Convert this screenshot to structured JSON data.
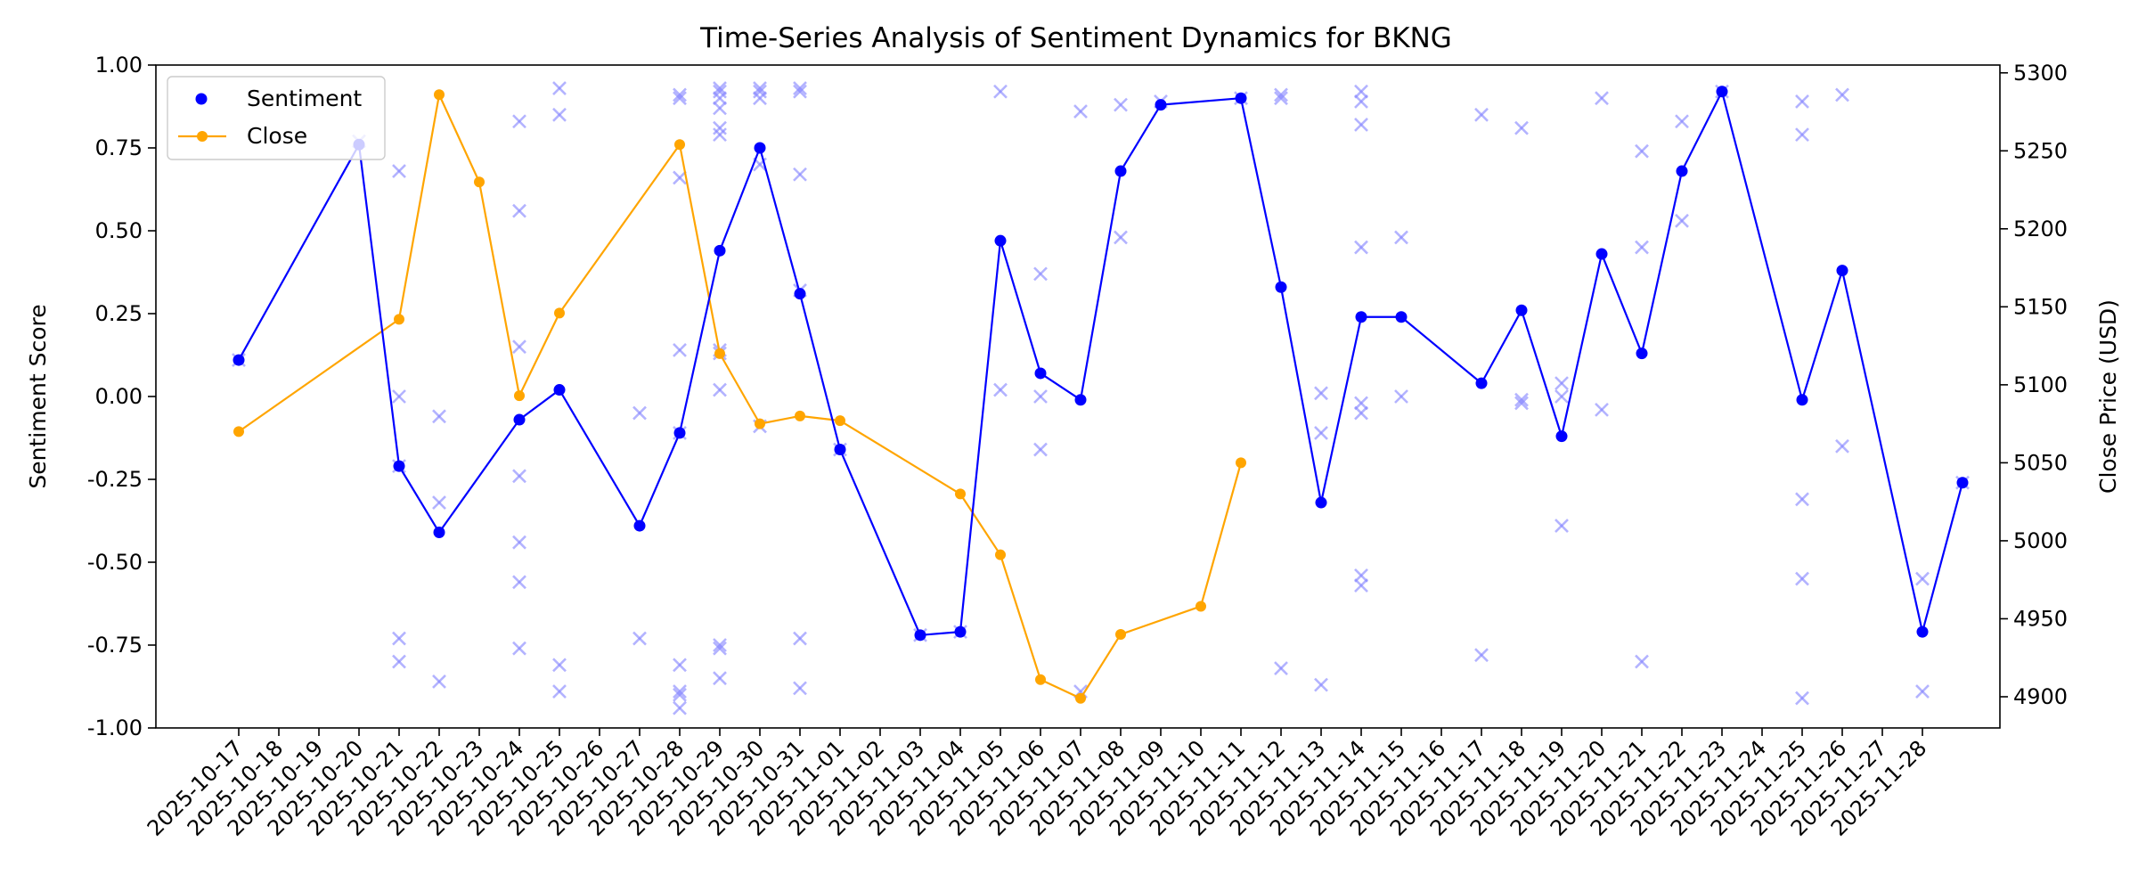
{
  "chart_data": {
    "type": "line",
    "title": "Time-Series Analysis of Sentiment Dynamics for BKNG",
    "ylabel": "Sentiment Score",
    "y2label": "Close Price (USD)",
    "xlabel": "",
    "ylim": [
      -1.0,
      1.0
    ],
    "y2lim": [
      4880,
      5305
    ],
    "yticks": [
      "-1.00",
      "-0.75",
      "-0.50",
      "-0.25",
      "0.00",
      "0.25",
      "0.50",
      "0.75",
      "1.00"
    ],
    "y2ticks": [
      "4900",
      "4950",
      "5000",
      "5050",
      "5100",
      "5150",
      "5200",
      "5250",
      "5300"
    ],
    "grid": false,
    "legend_position": "top-left",
    "categories": [
      "2025-10-17",
      "2025-10-18",
      "2025-10-19",
      "2025-10-20",
      "2025-10-21",
      "2025-10-22",
      "2025-10-23",
      "2025-10-24",
      "2025-10-25",
      "2025-10-26",
      "2025-10-27",
      "2025-10-28",
      "2025-10-29",
      "2025-10-30",
      "2025-10-31",
      "2025-11-01",
      "2025-11-02",
      "2025-11-03",
      "2025-11-04",
      "2025-11-05",
      "2025-11-06",
      "2025-11-07",
      "2025-11-08",
      "2025-11-09",
      "2025-11-10",
      "2025-11-11",
      "2025-11-12",
      "2025-11-13",
      "2025-11-14",
      "2025-11-15",
      "2025-11-16",
      "2025-11-17",
      "2025-11-18",
      "2025-11-19",
      "2025-11-20",
      "2025-11-21",
      "2025-11-22",
      "2025-11-23",
      "2025-11-24",
      "2025-11-25",
      "2025-11-26",
      "2025-11-27",
      "2025-11-28"
    ],
    "series": [
      {
        "name": "Sentiment",
        "axis": "left",
        "color": "#0000ff",
        "points": [
          [
            "2025-10-17",
            0.11
          ],
          [
            "2025-10-20",
            0.76
          ],
          [
            "2025-10-21",
            -0.21
          ],
          [
            "2025-10-22",
            -0.41
          ],
          [
            "2025-10-24",
            -0.07
          ],
          [
            "2025-10-25",
            0.02
          ],
          [
            "2025-10-27",
            -0.39
          ],
          [
            "2025-10-28",
            -0.11
          ],
          [
            "2025-10-29",
            0.44
          ],
          [
            "2025-10-30",
            0.75
          ],
          [
            "2025-10-31",
            0.31
          ],
          [
            "2025-11-01",
            -0.16
          ],
          [
            "2025-11-03",
            -0.72
          ],
          [
            "2025-11-04",
            -0.71
          ],
          [
            "2025-11-05",
            0.47
          ],
          [
            "2025-11-06",
            0.07
          ],
          [
            "2025-11-07",
            -0.01
          ],
          [
            "2025-11-08",
            0.68
          ],
          [
            "2025-11-09",
            0.88
          ],
          [
            "2025-11-11",
            0.9
          ],
          [
            "2025-11-12",
            0.33
          ],
          [
            "2025-11-13",
            -0.32
          ],
          [
            "2025-11-14",
            0.24
          ],
          [
            "2025-11-15",
            0.24
          ],
          [
            "2025-11-17",
            0.04
          ],
          [
            "2025-11-18",
            0.26
          ],
          [
            "2025-11-19",
            -0.12
          ],
          [
            "2025-11-20",
            0.43
          ],
          [
            "2025-11-21",
            0.13
          ],
          [
            "2025-11-22",
            0.68
          ],
          [
            "2025-11-23",
            0.92
          ],
          [
            "2025-11-25",
            -0.01
          ],
          [
            "2025-11-26",
            0.38
          ],
          [
            "2025-11-28",
            -0.71
          ],
          [
            "2025-11-29",
            -0.26
          ]
        ]
      },
      {
        "name": "Close",
        "axis": "right",
        "color": "#ffa500",
        "points": [
          [
            "2025-10-17",
            5070
          ],
          [
            "2025-10-21",
            5142
          ],
          [
            "2025-10-22",
            5286
          ],
          [
            "2025-10-23",
            5230
          ],
          [
            "2025-10-24",
            5093
          ],
          [
            "2025-10-25",
            5146
          ],
          [
            "2025-10-28",
            5254
          ],
          [
            "2025-10-29",
            5120
          ],
          [
            "2025-10-30",
            5075
          ],
          [
            "2025-10-31",
            5080
          ],
          [
            "2025-11-01",
            5077
          ],
          [
            "2025-11-04",
            5030
          ],
          [
            "2025-11-05",
            4991
          ],
          [
            "2025-11-06",
            4911
          ],
          [
            "2025-11-07",
            4899
          ],
          [
            "2025-11-08",
            4940
          ],
          [
            "2025-11-10",
            4958
          ],
          [
            "2025-11-11",
            5050
          ]
        ]
      },
      {
        "name": "",
        "type": "scatter",
        "marker": "x",
        "axis": "left",
        "color": "#8080ff",
        "points": [
          [
            "2025-10-17",
            0.11
          ],
          [
            "2025-10-20",
            0.77
          ],
          [
            "2025-10-21",
            0.68
          ],
          [
            "2025-10-21",
            0.0
          ],
          [
            "2025-10-21",
            -0.21
          ],
          [
            "2025-10-21",
            -0.73
          ],
          [
            "2025-10-21",
            -0.8
          ],
          [
            "2025-10-22",
            -0.06
          ],
          [
            "2025-10-22",
            -0.32
          ],
          [
            "2025-10-22",
            -0.86
          ],
          [
            "2025-10-24",
            0.83
          ],
          [
            "2025-10-24",
            0.56
          ],
          [
            "2025-10-24",
            0.15
          ],
          [
            "2025-10-24",
            -0.24
          ],
          [
            "2025-10-24",
            -0.44
          ],
          [
            "2025-10-24",
            -0.56
          ],
          [
            "2025-10-24",
            -0.76
          ],
          [
            "2025-10-25",
            0.93
          ],
          [
            "2025-10-25",
            0.85
          ],
          [
            "2025-10-25",
            -0.81
          ],
          [
            "2025-10-25",
            -0.89
          ],
          [
            "2025-10-27",
            -0.05
          ],
          [
            "2025-10-27",
            -0.73
          ],
          [
            "2025-10-28",
            0.91
          ],
          [
            "2025-10-28",
            0.9
          ],
          [
            "2025-10-28",
            0.66
          ],
          [
            "2025-10-28",
            0.14
          ],
          [
            "2025-10-28",
            -0.11
          ],
          [
            "2025-10-28",
            -0.81
          ],
          [
            "2025-10-28",
            -0.89
          ],
          [
            "2025-10-28",
            -0.9
          ],
          [
            "2025-10-28",
            -0.94
          ],
          [
            "2025-10-29",
            0.93
          ],
          [
            "2025-10-29",
            0.92
          ],
          [
            "2025-10-29",
            0.9
          ],
          [
            "2025-10-29",
            0.87
          ],
          [
            "2025-10-29",
            0.81
          ],
          [
            "2025-10-29",
            0.79
          ],
          [
            "2025-10-29",
            0.14
          ],
          [
            "2025-10-29",
            0.13
          ],
          [
            "2025-10-29",
            0.02
          ],
          [
            "2025-10-29",
            -0.75
          ],
          [
            "2025-10-29",
            -0.76
          ],
          [
            "2025-10-29",
            -0.85
          ],
          [
            "2025-10-30",
            0.93
          ],
          [
            "2025-10-30",
            0.92
          ],
          [
            "2025-10-30",
            0.9
          ],
          [
            "2025-10-30",
            0.7
          ],
          [
            "2025-10-30",
            -0.09
          ],
          [
            "2025-10-31",
            0.93
          ],
          [
            "2025-10-31",
            0.92
          ],
          [
            "2025-10-31",
            0.67
          ],
          [
            "2025-10-31",
            0.32
          ],
          [
            "2025-10-31",
            -0.73
          ],
          [
            "2025-10-31",
            -0.88
          ],
          [
            "2025-11-01",
            -0.16
          ],
          [
            "2025-11-03",
            -0.72
          ],
          [
            "2025-11-04",
            -0.71
          ],
          [
            "2025-11-05",
            0.92
          ],
          [
            "2025-11-05",
            0.02
          ],
          [
            "2025-11-06",
            0.37
          ],
          [
            "2025-11-06",
            0.0
          ],
          [
            "2025-11-06",
            -0.16
          ],
          [
            "2025-11-07",
            0.86
          ],
          [
            "2025-11-07",
            -0.89
          ],
          [
            "2025-11-08",
            0.88
          ],
          [
            "2025-11-08",
            0.48
          ],
          [
            "2025-11-09",
            0.89
          ],
          [
            "2025-11-11",
            0.9
          ],
          [
            "2025-11-12",
            0.91
          ],
          [
            "2025-11-12",
            0.9
          ],
          [
            "2025-11-12",
            -0.82
          ],
          [
            "2025-11-13",
            0.01
          ],
          [
            "2025-11-13",
            -0.11
          ],
          [
            "2025-11-13",
            -0.87
          ],
          [
            "2025-11-14",
            0.92
          ],
          [
            "2025-11-14",
            0.89
          ],
          [
            "2025-11-14",
            0.82
          ],
          [
            "2025-11-14",
            0.45
          ],
          [
            "2025-11-14",
            -0.02
          ],
          [
            "2025-11-14",
            -0.05
          ],
          [
            "2025-11-14",
            -0.54
          ],
          [
            "2025-11-14",
            -0.57
          ],
          [
            "2025-11-15",
            0.48
          ],
          [
            "2025-11-15",
            0.0
          ],
          [
            "2025-11-17",
            0.85
          ],
          [
            "2025-11-17",
            -0.78
          ],
          [
            "2025-11-18",
            0.81
          ],
          [
            "2025-11-18",
            -0.01
          ],
          [
            "2025-11-18",
            -0.02
          ],
          [
            "2025-11-19",
            0.04
          ],
          [
            "2025-11-19",
            0.0
          ],
          [
            "2025-11-19",
            -0.39
          ],
          [
            "2025-11-20",
            0.9
          ],
          [
            "2025-11-20",
            -0.04
          ],
          [
            "2025-11-21",
            0.74
          ],
          [
            "2025-11-21",
            0.45
          ],
          [
            "2025-11-21",
            -0.8
          ],
          [
            "2025-11-22",
            0.83
          ],
          [
            "2025-11-22",
            0.53
          ],
          [
            "2025-11-23",
            0.92
          ],
          [
            "2025-11-25",
            0.89
          ],
          [
            "2025-11-25",
            0.79
          ],
          [
            "2025-11-25",
            -0.31
          ],
          [
            "2025-11-25",
            -0.55
          ],
          [
            "2025-11-25",
            -0.91
          ],
          [
            "2025-11-26",
            0.91
          ],
          [
            "2025-11-26",
            -0.15
          ],
          [
            "2025-11-28",
            -0.55
          ],
          [
            "2025-11-28",
            -0.89
          ],
          [
            "2025-11-29",
            -0.26
          ]
        ]
      }
    ]
  }
}
